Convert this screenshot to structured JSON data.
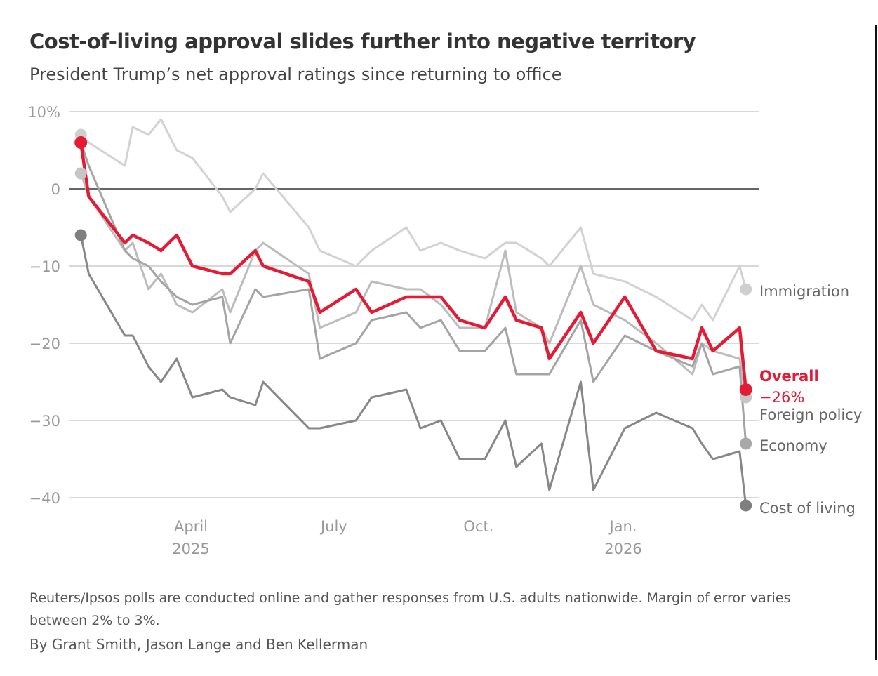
{
  "title": "Cost-of-living approval slides further into negative territory",
  "subtitle": "President Trump’s net approval ratings since returning to office",
  "note": "Reuters/Ipsos polls are conducted online and gather responses from U.S. adults nationwide. Margin of error varies between 2% to 3%.",
  "byline": "By Grant Smith, Jason Lange and Ben Kellerman",
  "chart_data": {
    "type": "line",
    "title": "Cost-of-living approval slides further into negative territory",
    "subtitle": "President Trump’s net approval ratings since returning to office",
    "ylim": [
      -40,
      10
    ],
    "y_ticks": [
      {
        "v": 10,
        "label": "10%"
      },
      {
        "v": 0,
        "label": "0"
      },
      {
        "v": -10,
        "label": "−10"
      },
      {
        "v": -20,
        "label": "−20"
      },
      {
        "v": -30,
        "label": "−30"
      },
      {
        "v": -40,
        "label": "−40"
      }
    ],
    "x_ticks": [
      {
        "date": "2025-04-01",
        "label": "April",
        "sub": "2025"
      },
      {
        "date": "2025-07-01",
        "label": "July",
        "sub": ""
      },
      {
        "date": "2025-10-01",
        "label": "Oct.",
        "sub": ""
      },
      {
        "date": "2026-01-01",
        "label": "Jan.",
        "sub": "2026"
      }
    ],
    "grid": true,
    "x": [
      "2025-01-21",
      "2025-01-26",
      "2025-02-18",
      "2025-02-23",
      "2025-03-05",
      "2025-03-13",
      "2025-03-23",
      "2025-04-02",
      "2025-04-21",
      "2025-04-26",
      "2025-05-12",
      "2025-05-17",
      "2025-06-15",
      "2025-06-22",
      "2025-07-15",
      "2025-07-25",
      "2025-08-16",
      "2025-08-25",
      "2025-09-07",
      "2025-09-19",
      "2025-10-05",
      "2025-10-18",
      "2025-10-25",
      "2025-11-10",
      "2025-11-15",
      "2025-12-05",
      "2025-12-13",
      "2026-01-02",
      "2026-01-22",
      "2026-02-14",
      "2026-02-20",
      "2026-02-27",
      "2026-03-16",
      "2026-03-20"
    ],
    "series": [
      {
        "name": "Immigration",
        "color": "#d2d2d2",
        "dot": "#cfcfcf",
        "width": 3,
        "values": [
          7,
          6,
          3,
          8,
          7,
          9,
          5,
          4,
          -1,
          -3,
          0,
          2,
          -5,
          -8,
          -10,
          -8,
          -5,
          -8,
          -7,
          -8,
          -9,
          -7,
          -7,
          -9,
          -10,
          -5,
          -11,
          -12,
          -14,
          -17,
          -15,
          -17,
          -10,
          -13
        ]
      },
      {
        "name": "Foreign policy",
        "color": "#bcbcbc",
        "dot": "#c6c6c6",
        "width": 3,
        "values": [
          2,
          -1,
          -8,
          -7,
          -13,
          -11,
          -15,
          -16,
          -13,
          -16,
          -8,
          -7,
          -11,
          -18,
          -16,
          -12,
          -13,
          -13,
          -15,
          -18,
          -18,
          -8,
          -16,
          -18,
          -20,
          -10,
          -15,
          -17,
          -20,
          -24,
          -20,
          -21,
          -22,
          -27
        ]
      },
      {
        "name": "Economy",
        "color": "#a4a4a4",
        "dot": "#a8a8a8",
        "width": 3,
        "values": [
          6,
          3,
          -8,
          -9,
          -10,
          -12,
          -14,
          -15,
          -14,
          -20,
          -13,
          -14,
          -13,
          -22,
          -20,
          -17,
          -16,
          -18,
          -17,
          -21,
          -21,
          -18,
          -24,
          -24,
          -24,
          -17,
          -25,
          -19,
          -21,
          -23,
          -20,
          -24,
          -23,
          -33
        ]
      },
      {
        "name": "Cost of living",
        "color": "#878787",
        "dot": "#7f7f7f",
        "width": 3,
        "values": [
          -6,
          -11,
          -19,
          -19,
          -23,
          -25,
          -22,
          -27,
          -26,
          -27,
          -28,
          -25,
          -31,
          -31,
          -30,
          -27,
          -26,
          -31,
          -30,
          -35,
          -35,
          -30,
          -36,
          -33,
          -39,
          -25,
          -39,
          -31,
          -29,
          -31,
          -33,
          -35,
          -34,
          -41
        ]
      },
      {
        "name": "Overall",
        "color": "#e31b35",
        "dot": "#e31b35",
        "width": 4.5,
        "last_label": "−26%",
        "values": [
          6,
          -1,
          -7,
          -6,
          -7,
          -8,
          -6,
          -10,
          -11,
          -11,
          -8,
          -10,
          -12,
          -16,
          -13,
          -16,
          -14,
          -14,
          -14,
          -17,
          -18,
          -14,
          -17,
          -18,
          -22,
          -16,
          -20,
          -14,
          -21,
          -22,
          -18,
          -21,
          -18,
          -26
        ]
      }
    ]
  }
}
